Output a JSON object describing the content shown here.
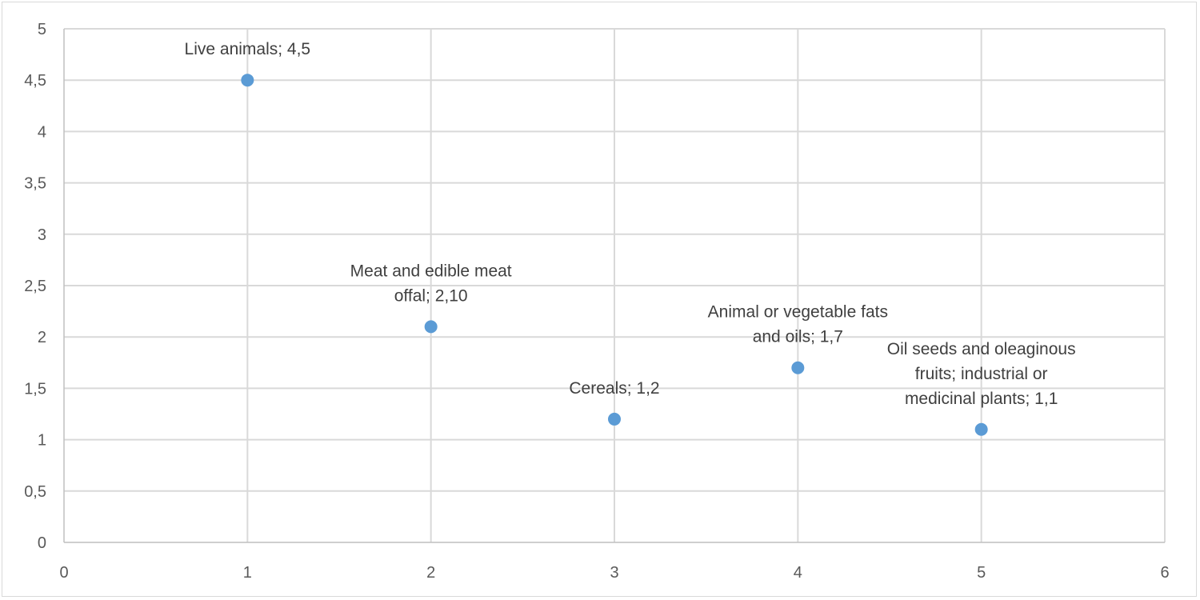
{
  "chart_data": {
    "type": "scatter",
    "title": "",
    "xlabel": "",
    "ylabel": "",
    "xlim": [
      0,
      6
    ],
    "ylim": [
      0,
      5
    ],
    "x_ticks": [
      "0",
      "1",
      "2",
      "3",
      "4",
      "5",
      "6"
    ],
    "y_ticks": [
      "0",
      "0,5",
      "1",
      "1,5",
      "2",
      "2,5",
      "3",
      "3,5",
      "4",
      "4,5",
      "5"
    ],
    "grid": true,
    "legend": "none",
    "series": [
      {
        "color": "#5b9bd5",
        "points": [
          {
            "x": 1,
            "y": 4.5,
            "label": [
              "Live animals; 4,5"
            ]
          },
          {
            "x": 2,
            "y": 2.1,
            "label": [
              "Meat and edible meat",
              "offal; 2,10"
            ]
          },
          {
            "x": 3,
            "y": 1.2,
            "label": [
              "Cereals; 1,2"
            ]
          },
          {
            "x": 4,
            "y": 1.7,
            "label": [
              "Animal or vegetable fats",
              "and oils; 1,7"
            ]
          },
          {
            "x": 5,
            "y": 1.1,
            "label": [
              "Oil seeds and oleaginous",
              "fruits; industrial or",
              "medicinal plants; 1,1"
            ]
          }
        ]
      }
    ]
  }
}
